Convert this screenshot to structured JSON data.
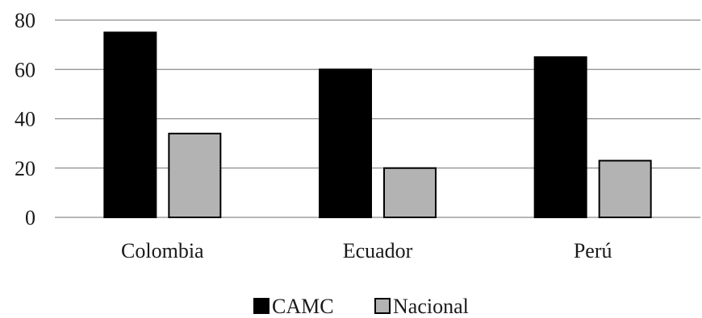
{
  "chart_data": {
    "type": "bar",
    "categories": [
      "Colombia",
      "Ecuador",
      "Perú"
    ],
    "series": [
      {
        "name": "CAMC",
        "values": [
          75,
          60,
          65
        ],
        "color": "#000000"
      },
      {
        "name": "Nacional",
        "values": [
          34,
          20,
          23
        ],
        "color": "#b3b3b3"
      }
    ],
    "yticks": [
      "0",
      "20",
      "40",
      "60",
      "80"
    ],
    "ylim": [
      0,
      80
    ],
    "grid": true,
    "legend_position": "bottom"
  }
}
